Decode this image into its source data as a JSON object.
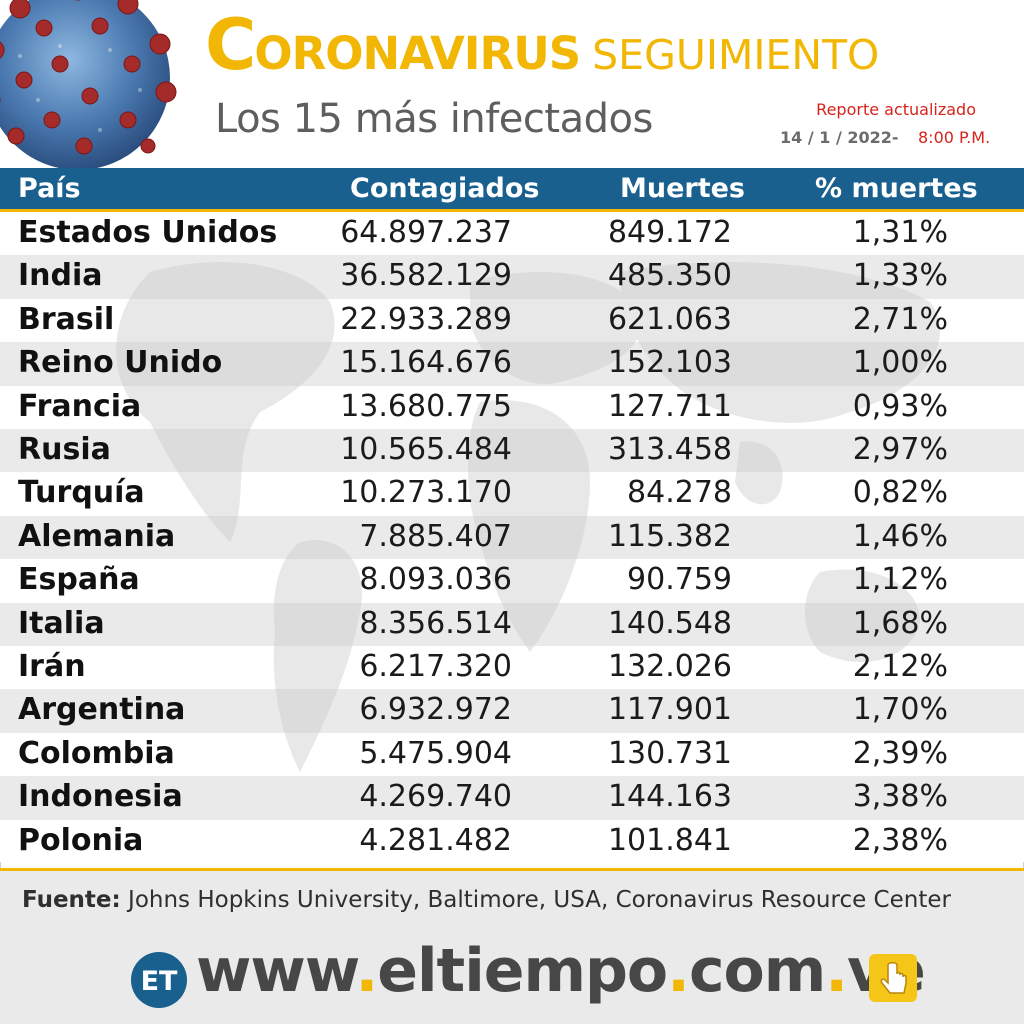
{
  "header": {
    "title_initial": "C",
    "title_rest": "ORONAVIRUS",
    "title_sub": "SEGUIMIENTO",
    "subtitle": "Los 15 más infectados",
    "report_label": "Reporte actualizado",
    "report_date": "14 / 1 / 2022-",
    "report_time": "8:00 P.M."
  },
  "table": {
    "columns": [
      "País",
      "Contagiados",
      "Muertes",
      "% muertes"
    ],
    "rows": [
      {
        "country": "Estados Unidos",
        "infected": "64.897.237",
        "deaths": "849.172",
        "pct": "1,31%"
      },
      {
        "country": "India",
        "infected": "36.582.129",
        "deaths": "485.350",
        "pct": "1,33%"
      },
      {
        "country": "Brasil",
        "infected": "22.933.289",
        "deaths": "621.063",
        "pct": "2,71%"
      },
      {
        "country": "Reino Unido",
        "infected": "15.164.676",
        "deaths": "152.103",
        "pct": "1,00%"
      },
      {
        "country": "Francia",
        "infected": "13.680.775",
        "deaths": "127.711",
        "pct": "0,93%"
      },
      {
        "country": "Rusia",
        "infected": "10.565.484",
        "deaths": "313.458",
        "pct": "2,97%"
      },
      {
        "country": "Turquía",
        "infected": "10.273.170",
        "deaths": "84.278",
        "pct": "0,82%"
      },
      {
        "country": "Alemania",
        "infected": "7.885.407",
        "deaths": "115.382",
        "pct": "1,46%"
      },
      {
        "country": "España",
        "infected": "8.093.036",
        "deaths": "90.759",
        "pct": "1,12%"
      },
      {
        "country": "Italia",
        "infected": "8.356.514",
        "deaths": "140.548",
        "pct": "1,68%"
      },
      {
        "country": "Irán",
        "infected": "6.217.320",
        "deaths": "132.026",
        "pct": "2,12%"
      },
      {
        "country": "Argentina",
        "infected": "6.932.972",
        "deaths": "117.901",
        "pct": "1,70%"
      },
      {
        "country": "Colombia",
        "infected": "5.475.904",
        "deaths": "130.731",
        "pct": "2,39%"
      },
      {
        "country": "Indonesia",
        "infected": "4.269.740",
        "deaths": "144.163",
        "pct": "3,38%"
      },
      {
        "country": "Polonia",
        "infected": "4.281.482",
        "deaths": "101.841",
        "pct": "2,38%"
      }
    ]
  },
  "footer": {
    "source_label": "Fuente:",
    "source_text": " Johns Hopkins University, Baltimore, USA, Coronavirus Resource Center",
    "logo_text": "ET",
    "site_parts": [
      "www",
      ".",
      "eltiempo",
      ".",
      "com",
      ".",
      "ve"
    ]
  },
  "colors": {
    "accent_yellow": "#f2b705",
    "header_blue": "#19608e",
    "report_red": "#d8231b",
    "text_gray": "#5e5e5e"
  },
  "icons": [
    "coronavirus-illustration",
    "world-map-watermark",
    "el-tiempo-logo-icon",
    "pointing-hand-icon"
  ]
}
